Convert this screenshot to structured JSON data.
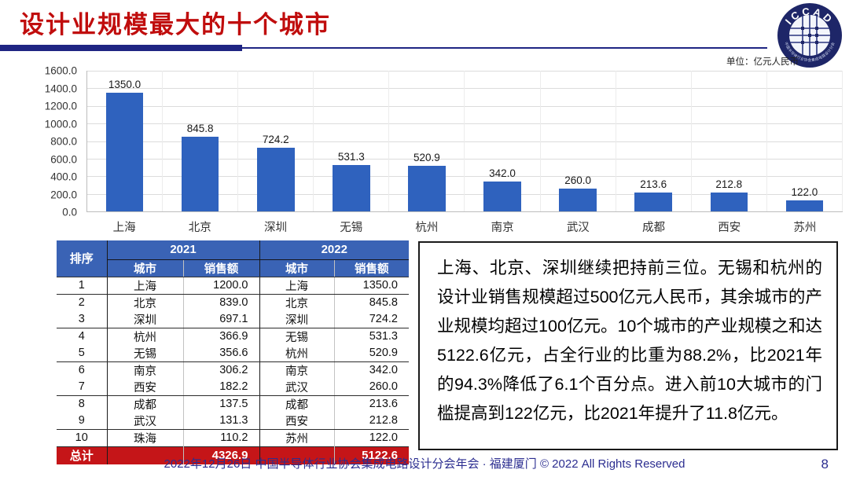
{
  "header": {
    "title": "设计业规模最大的十个城市",
    "logo": {
      "arc_text": "ICCAD",
      "ring_text": "中国半导体行业协会集成电路设计分会",
      "color": "#1E2668"
    }
  },
  "chart_data": {
    "type": "bar",
    "title": "",
    "unit_label": "单位：亿元人民币",
    "categories": [
      "上海",
      "北京",
      "深圳",
      "无锡",
      "杭州",
      "南京",
      "武汉",
      "成都",
      "西安",
      "苏州"
    ],
    "values": [
      1350.0,
      845.8,
      724.2,
      531.3,
      520.9,
      342.0,
      260.0,
      213.6,
      212.8,
      122.0
    ],
    "value_labels": [
      "1350.0",
      "845.8",
      "724.2",
      "531.3",
      "520.9",
      "342.0",
      "260.0",
      "213.6",
      "212.8",
      "122.0"
    ],
    "ylim": [
      0,
      1600
    ],
    "ytick_labels": [
      "1600.0",
      "1400.0",
      "1200.0",
      "1000.0",
      "800.0",
      "600.0",
      "400.0",
      "200.0",
      "0.0"
    ],
    "xlabel": "",
    "ylabel": "",
    "grid": true,
    "legend_position": "none",
    "bar_color": "#2F62BE"
  },
  "table": {
    "headers": {
      "rank": "排序",
      "years": [
        "2021",
        "2022"
      ],
      "sub": [
        "城市",
        "销售额"
      ]
    },
    "rows": [
      {
        "rank": "1",
        "c2021": "上海",
        "s2021": "1200.0",
        "c2022": "上海",
        "s2022": "1350.0",
        "rule_below": true
      },
      {
        "rank": "2",
        "c2021": "北京",
        "s2021": "839.0",
        "c2022": "北京",
        "s2022": "845.8",
        "rule_below": false
      },
      {
        "rank": "3",
        "c2021": "深圳",
        "s2021": "697.1",
        "c2022": "深圳",
        "s2022": "724.2",
        "rule_below": true
      },
      {
        "rank": "4",
        "c2021": "杭州",
        "s2021": "366.9",
        "c2022": "无锡",
        "s2022": "531.3",
        "rule_below": false
      },
      {
        "rank": "5",
        "c2021": "无锡",
        "s2021": "356.6",
        "c2022": "杭州",
        "s2022": "520.9",
        "rule_below": true
      },
      {
        "rank": "6",
        "c2021": "南京",
        "s2021": "306.2",
        "c2022": "南京",
        "s2022": "342.0",
        "rule_below": false
      },
      {
        "rank": "7",
        "c2021": "西安",
        "s2021": "182.2",
        "c2022": "武汉",
        "s2022": "260.0",
        "rule_below": true
      },
      {
        "rank": "8",
        "c2021": "成都",
        "s2021": "137.5",
        "c2022": "成都",
        "s2022": "213.6",
        "rule_below": false
      },
      {
        "rank": "9",
        "c2021": "武汉",
        "s2021": "131.3",
        "c2022": "西安",
        "s2022": "212.8",
        "rule_below": true
      },
      {
        "rank": "10",
        "c2021": "珠海",
        "s2021": "110.2",
        "c2022": "苏州",
        "s2022": "122.0",
        "rule_below": false
      }
    ],
    "total": {
      "label": "总计",
      "s2021": "4326.9",
      "s2022": "5122.6"
    },
    "header_bg": "#3A63B5",
    "total_bg": "#C51518"
  },
  "commentary": "上海、北京、深圳继续把持前三位。无锡和杭州的设计业销售规模超过500亿元人民币，其余城市的产业规模均超过100亿元。10个城市的产业规模之和达5122.6亿元，占全行业的比重为88.2%，比2021年的94.3%降低了6.1个百分点。进入前10大城市的门槛提高到122亿元，比2021年提升了11.8亿元。",
  "footer": {
    "text": "2022年12月26日 中国半导体行业协会集成电路设计分会年会 · 福建厦门 © 2022 All Rights Reserved",
    "page_number": "8"
  }
}
